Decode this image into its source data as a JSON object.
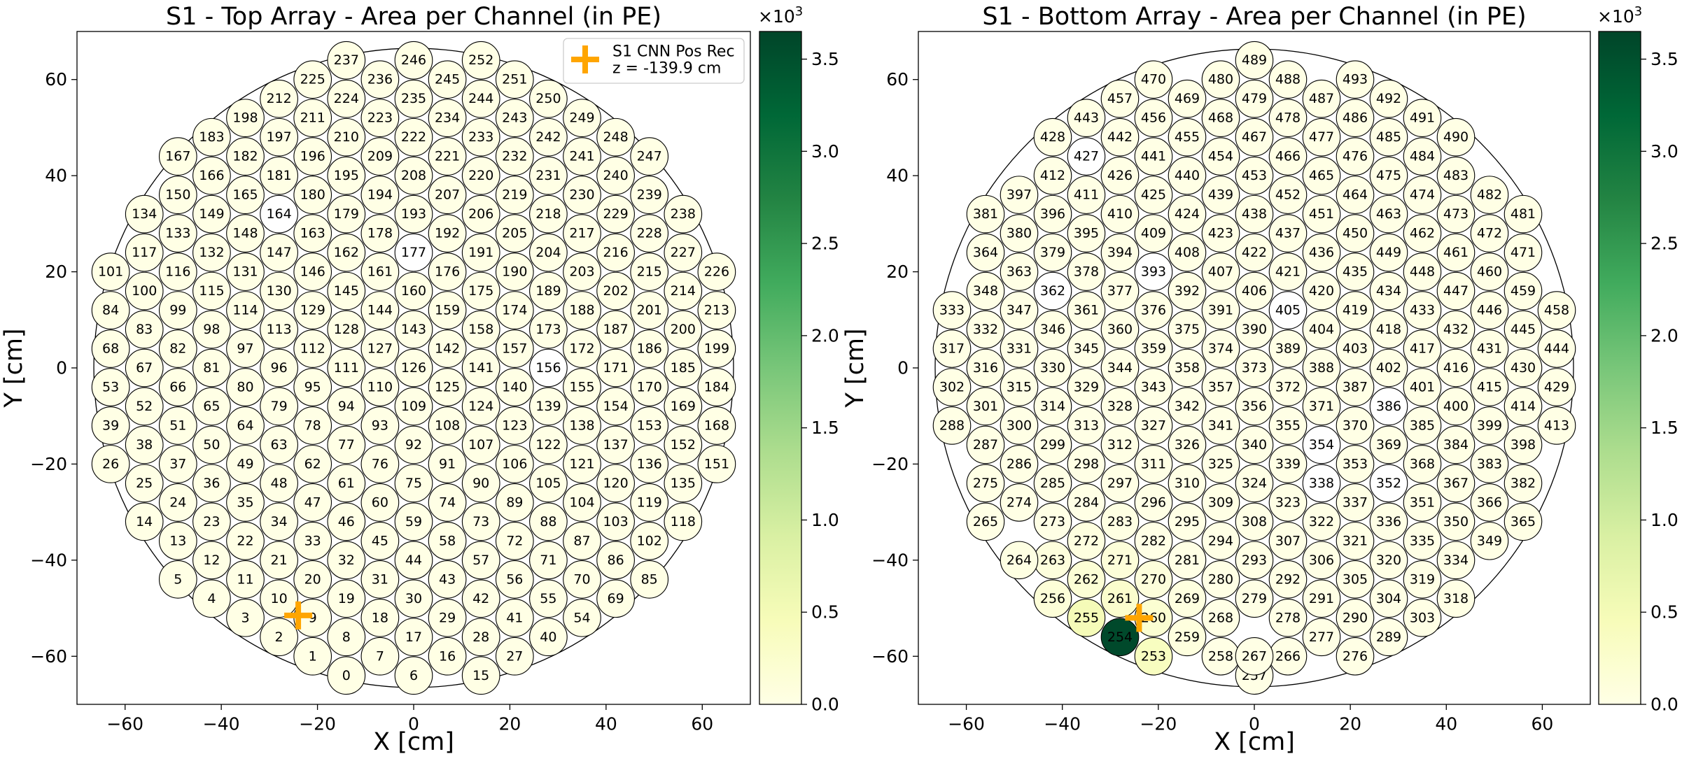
{
  "chart_data": [
    {
      "type": "heatmap",
      "title": "S1 - Top Array - Area per Channel (in PE)",
      "xlabel": "X [cm]",
      "ylabel": "Y [cm]",
      "xlim": [
        -70,
        70
      ],
      "ylim": [
        -70,
        70
      ],
      "xticks": [
        "−60",
        "−40",
        "−20",
        "0",
        "20",
        "40",
        "60"
      ],
      "yticks": [
        "−60",
        "−40",
        "−20",
        "0",
        "20",
        "40",
        "60"
      ],
      "colorbar": {
        "multiplier": "×10",
        "exponent": "3",
        "range": [
          0.0,
          3.65
        ],
        "ticks": [
          "0.0",
          "0.5",
          "1.0",
          "1.5",
          "2.0",
          "2.5",
          "3.0",
          "3.5"
        ],
        "colormap": [
          "#ffffe5",
          "#f7fcb9",
          "#d9f0a3",
          "#addd8e",
          "#78c679",
          "#41ab5d",
          "#238443",
          "#006837",
          "#004529"
        ]
      },
      "legend": {
        "placement": "top-right",
        "label": "S1 CNN Pos Rec",
        "note": "z = -139.9 cm",
        "marker_color": "#ffa500"
      },
      "marker": {
        "x": -24.0,
        "y": -51.5
      },
      "channel_range": [
        0,
        252
      ],
      "values": {},
      "missing_channels": [
        164,
        177,
        156
      ]
    },
    {
      "type": "heatmap",
      "title": "S1 - Bottom Array - Area per Channel (in PE)",
      "xlabel": "X [cm]",
      "ylabel": "Y [cm]",
      "xlim": [
        -70,
        70
      ],
      "ylim": [
        -70,
        70
      ],
      "xticks": [
        "−60",
        "−40",
        "−20",
        "0",
        "20",
        "40",
        "60"
      ],
      "yticks": [
        "−60",
        "−40",
        "−20",
        "0",
        "20",
        "40",
        "60"
      ],
      "colorbar": {
        "multiplier": "×10",
        "exponent": "3",
        "range": [
          0.0,
          3.65
        ],
        "ticks": [
          "0.0",
          "0.5",
          "1.0",
          "1.5",
          "2.0",
          "2.5",
          "3.0",
          "3.5"
        ],
        "colormap": [
          "#ffffe5",
          "#f7fcb9",
          "#d9f0a3",
          "#addd8e",
          "#78c679",
          "#41ab5d",
          "#238443",
          "#006837",
          "#004529"
        ]
      },
      "marker": {
        "x": -24.0,
        "y": -52.0
      },
      "channel_range": [
        253,
        493
      ],
      "values": {
        "254": 3.6,
        "255": 0.48,
        "253": 0.38,
        "261": 0.25,
        "260": 0.2,
        "262": 0.17,
        "256": 0.13,
        "270": 0.1,
        "271": 0.12,
        "263": 0.09,
        "259": 0.07,
        "269": 0.06,
        "272": 0.06,
        "264": 0.03,
        "283": 0.03
      },
      "missing_channels": [
        362,
        393,
        405,
        427,
        386,
        338,
        352,
        354
      ]
    }
  ]
}
